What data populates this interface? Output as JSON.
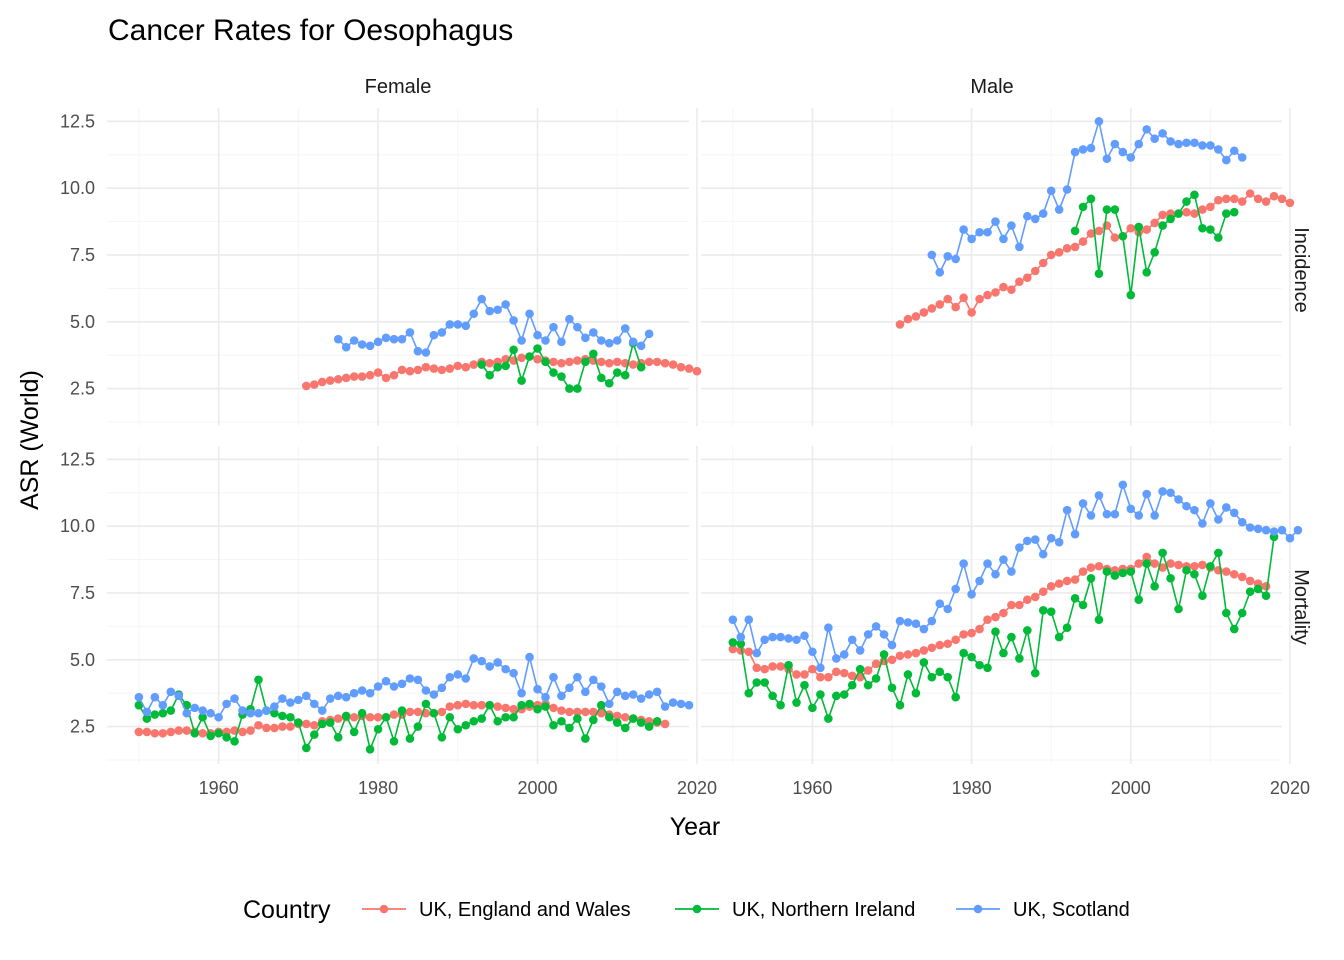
{
  "chart_data": {
    "type": "line",
    "title": "Cancer Rates for Oesophagus",
    "xlabel": "Year",
    "ylabel": "ASR (World)",
    "xlim": [
      1946,
      2019
    ],
    "ylim": [
      1.1,
      13.0
    ],
    "x_ticks": [
      1960,
      1980,
      2000,
      2020
    ],
    "y_ticks": [
      2.5,
      5.0,
      7.5,
      10.0,
      12.5
    ],
    "x_tick_labels": [
      "1960",
      "1980",
      "2000",
      "2020"
    ],
    "y_tick_labels": [
      "2.5",
      "5.0",
      "7.5",
      "10.0",
      "12.5"
    ],
    "column_facets": [
      "Female",
      "Male"
    ],
    "row_facets": [
      "Incidence",
      "Mortality"
    ],
    "grid": true,
    "markers": "points",
    "legend": {
      "title": "Country",
      "position": "bottom",
      "entries": [
        {
          "name": "UK, England and Wales",
          "color": "#F8766D"
        },
        {
          "name": "UK, Northern Ireland",
          "color": "#00BA38"
        },
        {
          "name": "UK, Scotland",
          "color": "#619CFF"
        }
      ]
    },
    "panels": [
      {
        "col": "Female",
        "row": "Incidence",
        "series": [
          {
            "name": "UK, England and Wales",
            "start_year": 1971,
            "values": [
              2.6,
              2.65,
              2.75,
              2.8,
              2.85,
              2.9,
              2.95,
              2.95,
              3.0,
              3.1,
              2.9,
              3.0,
              3.2,
              3.15,
              3.2,
              3.3,
              3.25,
              3.2,
              3.25,
              3.35,
              3.3,
              3.4,
              3.5,
              3.45,
              3.5,
              3.6,
              3.55,
              3.65,
              3.7,
              3.6,
              3.55,
              3.5,
              3.45,
              3.5,
              3.55,
              3.6,
              3.55,
              3.5,
              3.45,
              3.5,
              3.45,
              3.4,
              3.45,
              3.5,
              3.5,
              3.45,
              3.4,
              3.3,
              3.25,
              3.15
            ]
          },
          {
            "name": "UK, Northern Ireland",
            "start_year": 1993,
            "values": [
              3.4,
              3.0,
              3.3,
              3.35,
              3.95,
              2.8,
              3.7,
              4.0,
              3.5,
              3.1,
              2.95,
              2.5,
              2.5,
              3.5,
              3.8,
              2.9,
              2.7,
              3.1,
              3.0,
              4.2,
              3.3
            ]
          },
          {
            "name": "UK, Scotland",
            "start_year": 1975,
            "values": [
              4.35,
              4.05,
              4.3,
              4.15,
              4.1,
              4.25,
              4.4,
              4.35,
              4.35,
              4.6,
              3.9,
              3.85,
              4.5,
              4.6,
              4.9,
              4.9,
              4.85,
              5.3,
              5.85,
              5.4,
              5.45,
              5.65,
              5.05,
              4.3,
              5.3,
              4.5,
              4.3,
              4.8,
              4.25,
              5.1,
              4.8,
              4.4,
              4.6,
              4.3,
              4.2,
              4.3,
              4.75,
              4.25,
              4.1,
              4.55
            ]
          }
        ]
      },
      {
        "col": "Male",
        "row": "Incidence",
        "series": [
          {
            "name": "UK, England and Wales",
            "start_year": 1971,
            "values": [
              4.9,
              5.1,
              5.2,
              5.35,
              5.5,
              5.65,
              5.85,
              5.55,
              5.9,
              5.35,
              5.85,
              6.0,
              6.1,
              6.3,
              6.2,
              6.5,
              6.65,
              6.9,
              7.2,
              7.5,
              7.6,
              7.75,
              7.8,
              8.0,
              8.3,
              8.4,
              8.6,
              8.15,
              8.2,
              8.5,
              8.35,
              8.45,
              8.7,
              9.0,
              9.05,
              9.05,
              9.1,
              9.05,
              9.2,
              9.3,
              9.55,
              9.6,
              9.6,
              9.5,
              9.8,
              9.6,
              9.5,
              9.7,
              9.6,
              9.45
            ]
          },
          {
            "name": "UK, Northern Ireland",
            "start_year": 1993,
            "values": [
              8.4,
              9.3,
              9.6,
              6.8,
              9.2,
              9.2,
              8.2,
              6.0,
              8.55,
              6.85,
              7.6,
              8.6,
              8.85,
              9.05,
              9.5,
              9.75,
              8.5,
              8.45,
              8.15,
              9.05,
              9.1
            ]
          },
          {
            "name": "UK, Scotland",
            "start_year": 1975,
            "values": [
              7.5,
              6.85,
              7.45,
              7.35,
              8.45,
              8.1,
              8.35,
              8.35,
              8.75,
              8.1,
              8.6,
              7.8,
              8.95,
              8.85,
              9.05,
              9.9,
              9.2,
              9.95,
              11.35,
              11.45,
              11.5,
              12.5,
              11.1,
              11.65,
              11.35,
              11.15,
              11.65,
              12.2,
              11.85,
              12.05,
              11.75,
              11.65,
              11.7,
              11.7,
              11.6,
              11.6,
              11.45,
              11.05,
              11.4,
              11.15
            ]
          }
        ]
      },
      {
        "col": "Female",
        "row": "Mortality",
        "series": [
          {
            "name": "UK, England and Wales",
            "start_year": 1950,
            "values": [
              2.3,
              2.3,
              2.25,
              2.25,
              2.3,
              2.35,
              2.35,
              2.3,
              2.25,
              2.25,
              2.3,
              2.3,
              2.35,
              2.3,
              2.35,
              2.55,
              2.45,
              2.45,
              2.5,
              2.5,
              2.6,
              2.6,
              2.55,
              2.7,
              2.75,
              2.8,
              2.85,
              2.85,
              2.9,
              2.85,
              2.85,
              2.85,
              2.95,
              2.95,
              3.05,
              3.05,
              3.0,
              3.0,
              3.05,
              3.25,
              3.3,
              3.35,
              3.3,
              3.3,
              3.3,
              3.25,
              3.2,
              3.15,
              3.15,
              3.25,
              3.3,
              3.35,
              3.2,
              3.1,
              3.05,
              3.05,
              3.05,
              3.05,
              3.0,
              2.95,
              2.9,
              2.85,
              2.8,
              2.75,
              2.7,
              2.65,
              2.6
            ]
          },
          {
            "name": "UK, Northern Ireland",
            "start_year": 1950,
            "values": [
              3.3,
              2.8,
              2.95,
              3.0,
              3.1,
              3.7,
              3.3,
              2.25,
              2.85,
              2.15,
              2.25,
              2.1,
              1.95,
              2.95,
              3.15,
              4.25,
              3.1,
              3.0,
              2.9,
              2.85,
              2.65,
              1.7,
              2.2,
              2.6,
              2.65,
              2.1,
              2.9,
              2.3,
              3.0,
              1.65,
              2.4,
              2.85,
              1.95,
              3.1,
              2.05,
              2.5,
              3.35,
              3.0,
              2.1,
              2.85,
              2.4,
              2.55,
              2.7,
              2.8,
              3.3,
              2.7,
              2.85,
              2.85,
              3.3,
              3.35,
              3.15,
              3.25,
              2.55,
              2.7,
              2.45,
              2.8,
              2.05,
              2.75,
              3.3,
              2.85,
              2.65,
              2.45,
              2.8,
              2.65,
              2.5,
              2.7
            ]
          },
          {
            "name": "UK, Scotland",
            "start_year": 1950,
            "values": [
              3.6,
              3.05,
              3.6,
              3.3,
              3.8,
              3.65,
              3.0,
              3.2,
              3.1,
              3.0,
              2.85,
              3.35,
              3.55,
              3.1,
              3.0,
              3.0,
              3.1,
              3.25,
              3.55,
              3.4,
              3.5,
              3.65,
              3.35,
              3.1,
              3.55,
              3.65,
              3.6,
              3.75,
              3.85,
              3.75,
              4.0,
              4.2,
              4.0,
              4.1,
              4.3,
              4.25,
              3.85,
              3.7,
              3.95,
              4.35,
              4.45,
              4.3,
              5.05,
              4.95,
              4.75,
              4.9,
              4.65,
              4.5,
              3.75,
              5.1,
              3.9,
              3.6,
              4.35,
              3.65,
              3.95,
              4.35,
              3.8,
              4.25,
              4.0,
              3.35,
              3.8,
              3.65,
              3.7,
              3.55,
              3.7,
              3.8,
              3.25,
              3.4,
              3.35,
              3.3
            ]
          }
        ]
      },
      {
        "col": "Male",
        "row": "Mortality",
        "series": [
          {
            "name": "UK, England and Wales",
            "start_year": 1950,
            "values": [
              5.4,
              5.35,
              5.3,
              4.7,
              4.65,
              4.75,
              4.75,
              4.65,
              4.45,
              4.45,
              4.65,
              4.35,
              4.35,
              4.55,
              4.5,
              4.4,
              4.35,
              4.6,
              4.85,
              4.95,
              5.0,
              5.15,
              5.2,
              5.25,
              5.35,
              5.45,
              5.55,
              5.6,
              5.75,
              5.95,
              6.0,
              6.15,
              6.5,
              6.6,
              6.75,
              7.05,
              7.05,
              7.25,
              7.35,
              7.55,
              7.75,
              7.85,
              7.95,
              8.0,
              8.3,
              8.45,
              8.5,
              8.4,
              8.35,
              8.4,
              8.4,
              8.6,
              8.85,
              8.6,
              8.45,
              8.6,
              8.55,
              8.5,
              8.5,
              8.55,
              8.45,
              8.35,
              8.3,
              8.2,
              8.1,
              7.95,
              7.85,
              7.75
            ]
          },
          {
            "name": "UK, Northern Ireland",
            "start_year": 1950,
            "values": [
              5.65,
              5.6,
              3.75,
              4.15,
              4.15,
              3.65,
              3.3,
              4.8,
              3.4,
              4.05,
              3.2,
              3.7,
              2.8,
              3.65,
              3.7,
              4.05,
              4.65,
              4.05,
              4.3,
              5.2,
              3.95,
              3.3,
              4.45,
              3.75,
              4.9,
              4.35,
              4.55,
              4.35,
              3.6,
              5.25,
              5.1,
              4.8,
              4.7,
              6.05,
              5.25,
              5.85,
              5.05,
              6.1,
              4.5,
              6.85,
              6.8,
              5.85,
              6.2,
              7.3,
              7.05,
              8.05,
              6.5,
              8.3,
              8.15,
              8.25,
              8.3,
              7.25,
              8.6,
              7.75,
              9.0,
              8.05,
              6.9,
              8.35,
              8.2,
              7.4,
              8.5,
              9.0,
              6.75,
              6.15,
              6.75,
              7.55,
              7.65,
              7.4,
              9.6
            ]
          },
          {
            "name": "UK, Scotland",
            "start_year": 1950,
            "values": [
              6.5,
              5.85,
              6.5,
              5.25,
              5.75,
              5.85,
              5.85,
              5.8,
              5.75,
              5.9,
              5.3,
              4.7,
              6.2,
              5.05,
              5.2,
              5.75,
              5.35,
              5.95,
              6.25,
              5.95,
              5.55,
              6.45,
              6.4,
              6.35,
              6.15,
              6.45,
              7.1,
              6.9,
              7.65,
              8.6,
              7.45,
              7.95,
              8.6,
              8.2,
              8.75,
              8.3,
              9.2,
              9.45,
              9.5,
              8.95,
              9.55,
              9.4,
              10.6,
              9.7,
              10.85,
              10.4,
              11.15,
              10.45,
              10.45,
              11.55,
              10.65,
              10.4,
              11.2,
              10.4,
              11.3,
              11.25,
              11.0,
              10.75,
              10.6,
              10.1,
              10.85,
              10.25,
              10.7,
              10.5,
              10.15,
              9.95,
              9.9,
              9.85,
              9.8,
              9.85,
              9.55,
              9.85
            ]
          }
        ]
      }
    ]
  }
}
